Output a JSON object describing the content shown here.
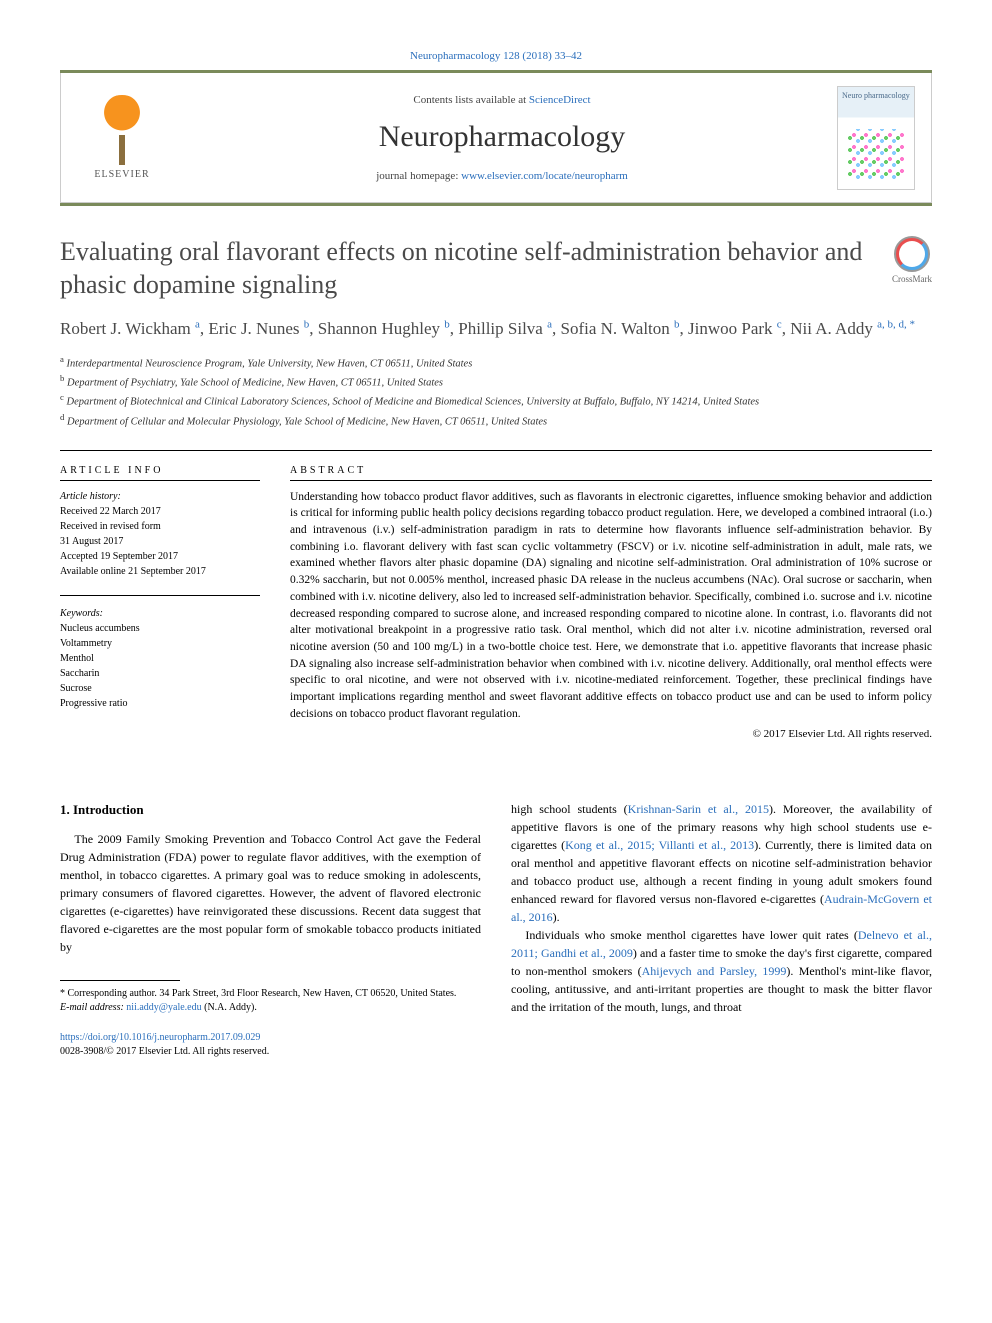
{
  "citation": "Neuropharmacology 128 (2018) 33–42",
  "masthead": {
    "contents_prefix": "Contents lists available at ",
    "contents_link": "ScienceDirect",
    "journal": "Neuropharmacology",
    "homepage_prefix": "journal homepage: ",
    "homepage_url": "www.elsevier.com/locate/neuropharm",
    "publisher_logo_text": "ELSEVIER",
    "cover_label": "Neuro pharmacology"
  },
  "crossmark_label": "CrossMark",
  "title": "Evaluating oral flavorant effects on nicotine self-administration behavior and phasic dopamine signaling",
  "authors_html": "Robert J. Wickham <sup>a</sup>, Eric J. Nunes <sup>b</sup>, Shannon Hughley <sup>b</sup>, Phillip Silva <sup>a</sup>, Sofia N. Walton <sup>b</sup>, Jinwoo Park <sup>c</sup>, Nii A. Addy <sup>a, b, d, *</sup>",
  "affiliations": [
    {
      "sup": "a",
      "text": "Interdepartmental Neuroscience Program, Yale University, New Haven, CT 06511, United States"
    },
    {
      "sup": "b",
      "text": "Department of Psychiatry, Yale School of Medicine, New Haven, CT 06511, United States"
    },
    {
      "sup": "c",
      "text": "Department of Biotechnical and Clinical Laboratory Sciences, School of Medicine and Biomedical Sciences, University at Buffalo, Buffalo, NY 14214, United States"
    },
    {
      "sup": "d",
      "text": "Department of Cellular and Molecular Physiology, Yale School of Medicine, New Haven, CT 06511, United States"
    }
  ],
  "info": {
    "heading": "ARTICLE INFO",
    "history_label": "Article history:",
    "history": [
      "Received 22 March 2017",
      "Received in revised form",
      "31 August 2017",
      "Accepted 19 September 2017",
      "Available online 21 September 2017"
    ],
    "keywords_label": "Keywords:",
    "keywords": [
      "Nucleus accumbens",
      "Voltammetry",
      "Menthol",
      "Saccharin",
      "Sucrose",
      "Progressive ratio"
    ]
  },
  "abstract": {
    "heading": "ABSTRACT",
    "body": "Understanding how tobacco product flavor additives, such as flavorants in electronic cigarettes, influence smoking behavior and addiction is critical for informing public health policy decisions regarding tobacco product regulation. Here, we developed a combined intraoral (i.o.) and intravenous (i.v.) self-administration paradigm in rats to determine how flavorants influence self-administration behavior. By combining i.o. flavorant delivery with fast scan cyclic voltammetry (FSCV) or i.v. nicotine self-administration in adult, male rats, we examined whether flavors alter phasic dopamine (DA) signaling and nicotine self-administration. Oral administration of 10% sucrose or 0.32% saccharin, but not 0.005% menthol, increased phasic DA release in the nucleus accumbens (NAc). Oral sucrose or saccharin, when combined with i.v. nicotine delivery, also led to increased self-administration behavior. Specifically, combined i.o. sucrose and i.v. nicotine decreased responding compared to sucrose alone, and increased responding compared to nicotine alone. In contrast, i.o. flavorants did not alter motivational breakpoint in a progressive ratio task. Oral menthol, which did not alter i.v. nicotine administration, reversed oral nicotine aversion (50 and 100 mg/L) in a two-bottle choice test. Here, we demonstrate that i.o. appetitive flavorants that increase phasic DA signaling also increase self-administration behavior when combined with i.v. nicotine delivery. Additionally, oral menthol effects were specific to oral nicotine, and were not observed with i.v. nicotine-mediated reinforcement. Together, these preclinical findings have important implications regarding menthol and sweet flavorant additive effects on tobacco product use and can be used to inform policy decisions on tobacco product flavorant regulation.",
    "copyright": "© 2017 Elsevier Ltd. All rights reserved."
  },
  "section1": {
    "heading": "1. Introduction",
    "col1_p1": "The 2009 Family Smoking Prevention and Tobacco Control Act gave the Federal Drug Administration (FDA) power to regulate flavor additives, with the exemption of menthol, in tobacco cigarettes. A primary goal was to reduce smoking in adolescents, primary consumers of flavored cigarettes. However, the advent of flavored electronic cigarettes (e-cigarettes) have reinvigorated these discussions. Recent data suggest that flavored e-cigarettes are the most popular form of smokable tobacco products initiated by",
    "col2_p1_pre": "high school students (",
    "col2_p1_link1": "Krishnan-Sarin et al., 2015",
    "col2_p1_mid1": "). Moreover, the availability of appetitive flavors is one of the primary reasons why high school students use e-cigarettes (",
    "col2_p1_link2": "Kong et al., 2015; Villanti et al., 2013",
    "col2_p1_mid2": "). Currently, there is limited data on oral menthol and appetitive flavorant effects on nicotine self-administration behavior and tobacco product use, although a recent finding in young adult smokers found enhanced reward for flavored versus non-flavored e-cigarettes (",
    "col2_p1_link3": "Audrain-McGovern et al., 2016",
    "col2_p1_end": ").",
    "col2_p2_pre": "Individuals who smoke menthol cigarettes have lower quit rates (",
    "col2_p2_link1": "Delnevo et al., 2011; Gandhi et al., 2009",
    "col2_p2_mid1": ") and a faster time to smoke the day's first cigarette, compared to non-menthol smokers (",
    "col2_p2_link2": "Ahijevych and Parsley, 1999",
    "col2_p2_end": "). Menthol's mint-like flavor, cooling, antitussive, and anti-irritant properties are thought to mask the bitter flavor and the irritation of the mouth, lungs, and throat"
  },
  "footnotes": {
    "corr_label": "* Corresponding author. 34 Park Street, 3rd Floor Research, New Haven, CT 06520, United States.",
    "email_label": "E-mail address:",
    "email": "nii.addy@yale.edu",
    "email_suffix": "(N.A. Addy)."
  },
  "bottom": {
    "doi": "https://doi.org/10.1016/j.neuropharm.2017.09.029",
    "issn_line": "0028-3908/© 2017 Elsevier Ltd. All rights reserved."
  },
  "colors": {
    "accent_bar": "#7a8a5a",
    "link": "#2a6ebb",
    "title_gray": "#4a4a4a"
  }
}
